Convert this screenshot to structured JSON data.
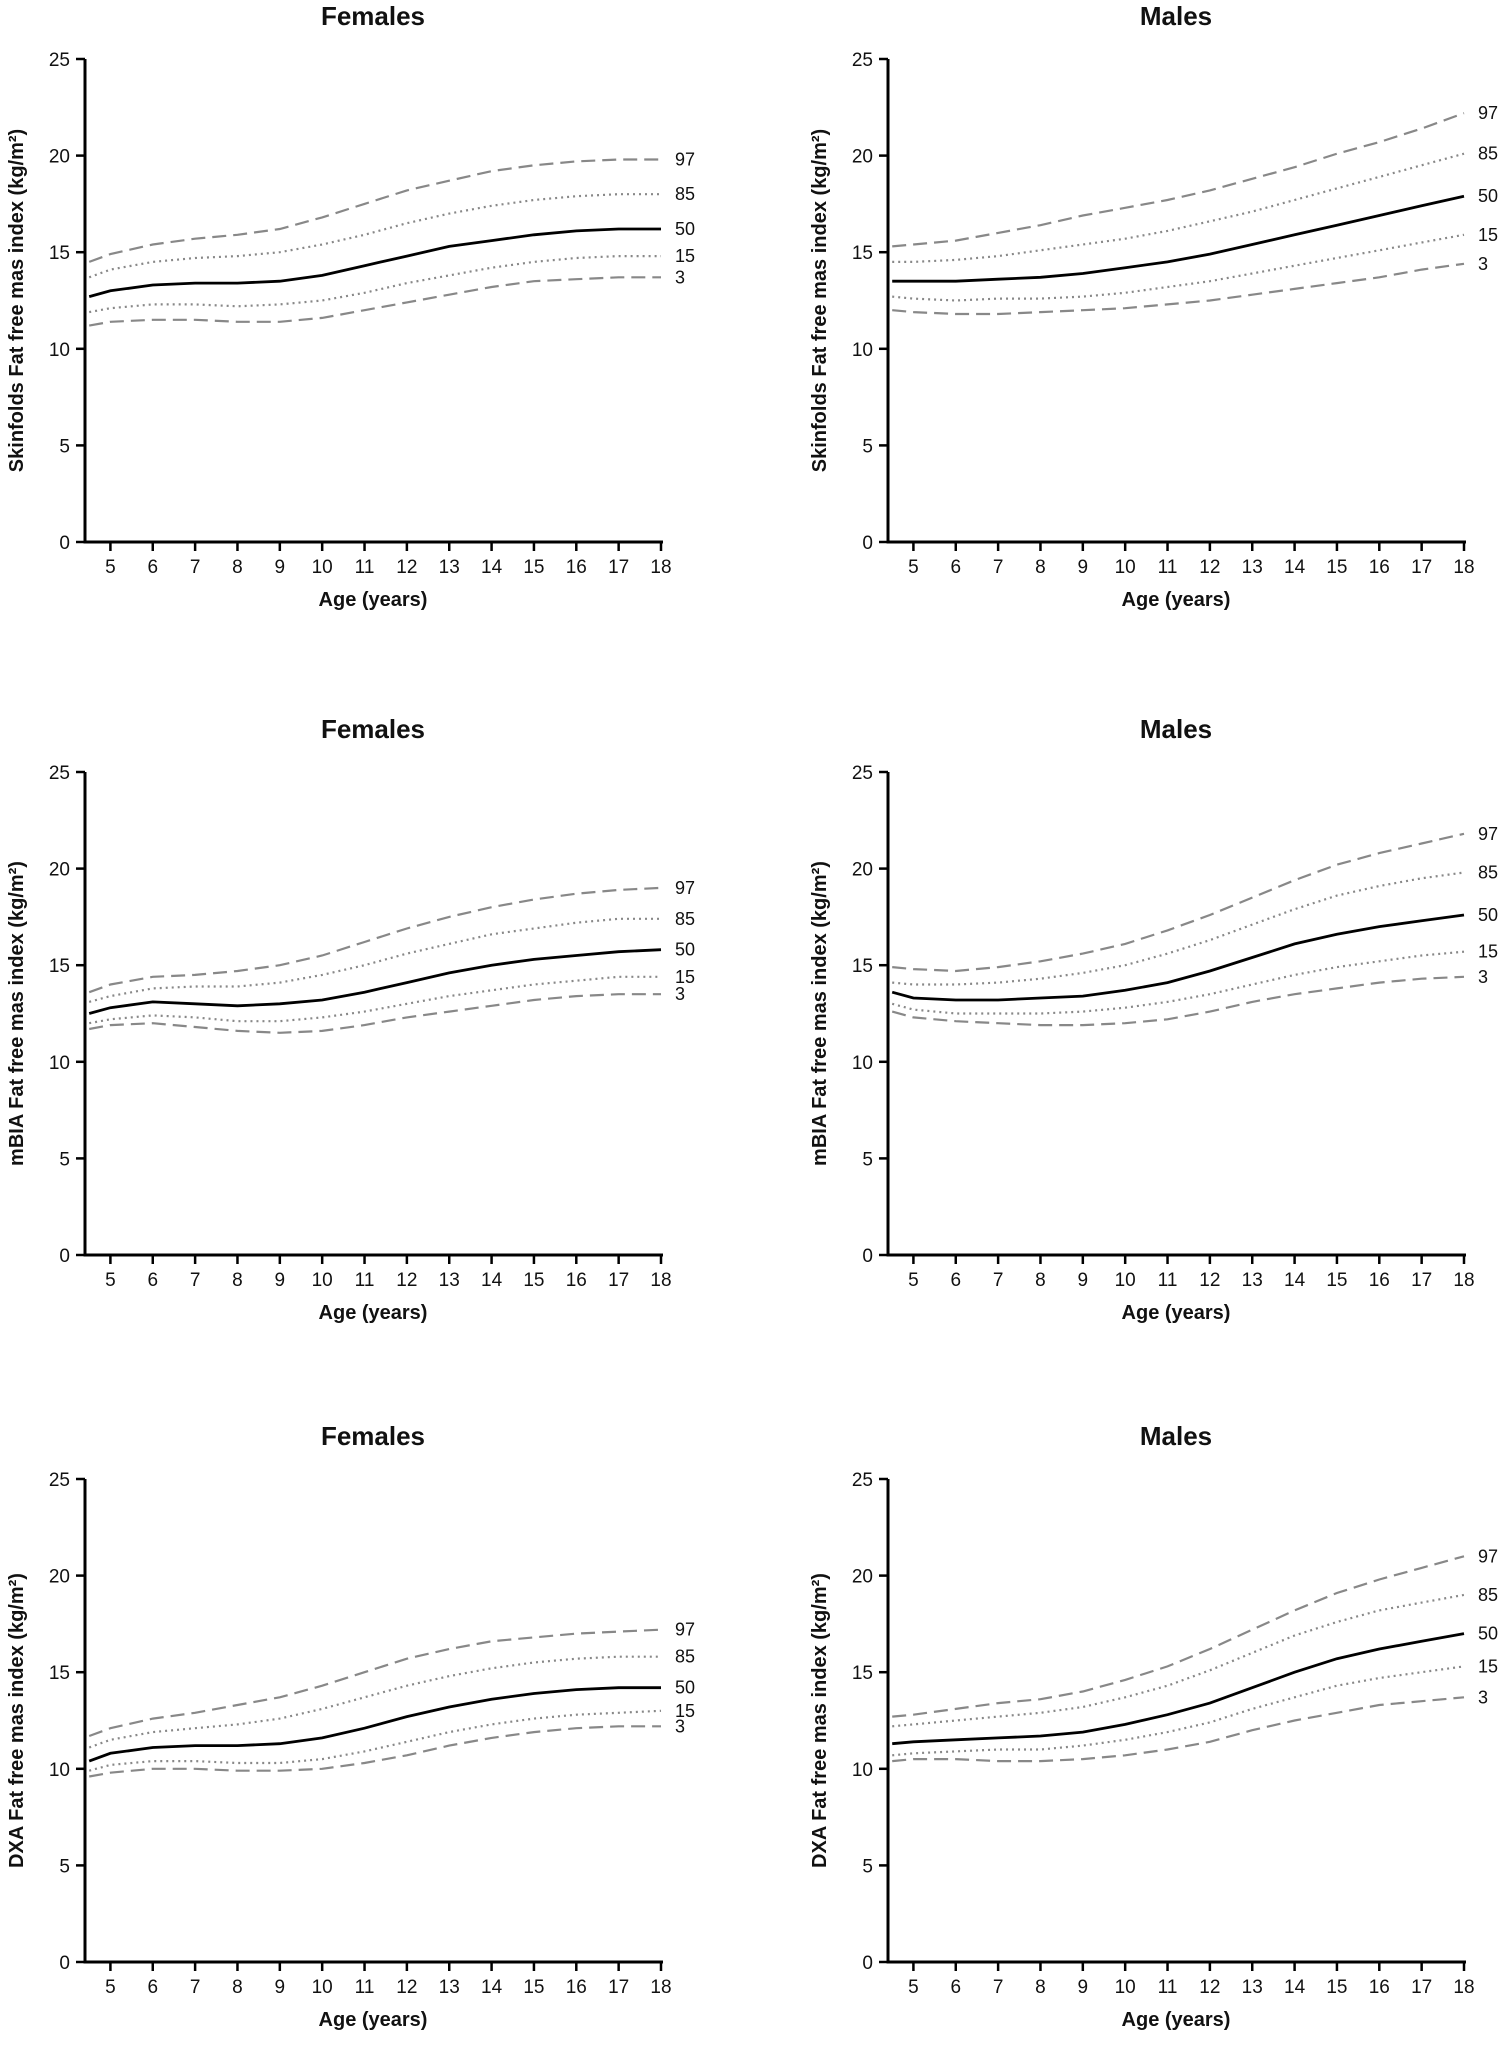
{
  "chart_data": [
    {
      "type": "line",
      "title": "Females",
      "x_label": "Age (years)",
      "y_label": "Skinfolds Fat free mas index  (kg/m²)",
      "x": [
        4.5,
        5,
        6,
        7,
        8,
        9,
        10,
        11,
        12,
        13,
        14,
        15,
        16,
        17,
        18
      ],
      "xlim": [
        4.4,
        18
      ],
      "xticks": [
        5,
        6,
        7,
        8,
        9,
        10,
        11,
        12,
        13,
        14,
        15,
        16,
        17,
        18
      ],
      "ylim": [
        0,
        25
      ],
      "yticks": [
        0,
        5,
        10,
        15,
        20,
        25
      ],
      "series": [
        {
          "name": "97",
          "color": "#888888",
          "style": "dashed",
          "values": [
            14.5,
            14.9,
            15.4,
            15.7,
            15.9,
            16.2,
            16.8,
            17.5,
            18.2,
            18.7,
            19.2,
            19.5,
            19.7,
            19.8,
            19.8
          ]
        },
        {
          "name": "85",
          "color": "#888888",
          "style": "dotted",
          "values": [
            13.7,
            14.1,
            14.5,
            14.7,
            14.8,
            15.0,
            15.4,
            15.9,
            16.5,
            17.0,
            17.4,
            17.7,
            17.9,
            18.0,
            18.0
          ]
        },
        {
          "name": "50",
          "color": "#000000",
          "style": "solid",
          "values": [
            12.7,
            13.0,
            13.3,
            13.4,
            13.4,
            13.5,
            13.8,
            14.3,
            14.8,
            15.3,
            15.6,
            15.9,
            16.1,
            16.2,
            16.2
          ]
        },
        {
          "name": "15",
          "color": "#888888",
          "style": "dotted",
          "values": [
            11.9,
            12.1,
            12.3,
            12.3,
            12.2,
            12.3,
            12.5,
            12.9,
            13.4,
            13.8,
            14.2,
            14.5,
            14.7,
            14.8,
            14.8
          ]
        },
        {
          "name": "3",
          "color": "#888888",
          "style": "dashed",
          "values": [
            11.2,
            11.4,
            11.5,
            11.5,
            11.4,
            11.4,
            11.6,
            12.0,
            12.4,
            12.8,
            13.2,
            13.5,
            13.6,
            13.7,
            13.7
          ]
        }
      ]
    },
    {
      "type": "line",
      "title": "Males",
      "x_label": "Age (years)",
      "y_label": "Skinfolds Fat free mas index  (kg/m²)",
      "x": [
        4.5,
        5,
        6,
        7,
        8,
        9,
        10,
        11,
        12,
        13,
        14,
        15,
        16,
        17,
        18
      ],
      "xlim": [
        4.4,
        18
      ],
      "xticks": [
        5,
        6,
        7,
        8,
        9,
        10,
        11,
        12,
        13,
        14,
        15,
        16,
        17,
        18
      ],
      "ylim": [
        0,
        25
      ],
      "yticks": [
        0,
        5,
        10,
        15,
        20,
        25
      ],
      "series": [
        {
          "name": "97",
          "color": "#888888",
          "style": "dashed",
          "values": [
            15.3,
            15.4,
            15.6,
            16.0,
            16.4,
            16.9,
            17.3,
            17.7,
            18.2,
            18.8,
            19.4,
            20.1,
            20.7,
            21.4,
            22.2
          ]
        },
        {
          "name": "85",
          "color": "#888888",
          "style": "dotted",
          "values": [
            14.5,
            14.5,
            14.6,
            14.8,
            15.1,
            15.4,
            15.7,
            16.1,
            16.6,
            17.1,
            17.7,
            18.3,
            18.9,
            19.5,
            20.1
          ]
        },
        {
          "name": "50",
          "color": "#000000",
          "style": "solid",
          "values": [
            13.5,
            13.5,
            13.5,
            13.6,
            13.7,
            13.9,
            14.2,
            14.5,
            14.9,
            15.4,
            15.9,
            16.4,
            16.9,
            17.4,
            17.9
          ]
        },
        {
          "name": "15",
          "color": "#888888",
          "style": "dotted",
          "values": [
            12.7,
            12.6,
            12.5,
            12.6,
            12.6,
            12.7,
            12.9,
            13.2,
            13.5,
            13.9,
            14.3,
            14.7,
            15.1,
            15.5,
            15.9
          ]
        },
        {
          "name": "3",
          "color": "#888888",
          "style": "dashed",
          "values": [
            12.0,
            11.9,
            11.8,
            11.8,
            11.9,
            12.0,
            12.1,
            12.3,
            12.5,
            12.8,
            13.1,
            13.4,
            13.7,
            14.1,
            14.4
          ]
        }
      ]
    },
    {
      "type": "line",
      "title": "Females",
      "x_label": "Age (years)",
      "y_label": "mBIA Fat free mas index  (kg/m²)",
      "x": [
        4.5,
        5,
        6,
        7,
        8,
        9,
        10,
        11,
        12,
        13,
        14,
        15,
        16,
        17,
        18
      ],
      "xlim": [
        4.4,
        18
      ],
      "xticks": [
        5,
        6,
        7,
        8,
        9,
        10,
        11,
        12,
        13,
        14,
        15,
        16,
        17,
        18
      ],
      "ylim": [
        0,
        25
      ],
      "yticks": [
        0,
        5,
        10,
        15,
        20,
        25
      ],
      "series": [
        {
          "name": "97",
          "color": "#888888",
          "style": "dashed",
          "values": [
            13.6,
            14.0,
            14.4,
            14.5,
            14.7,
            15.0,
            15.5,
            16.2,
            16.9,
            17.5,
            18.0,
            18.4,
            18.7,
            18.9,
            19.0
          ]
        },
        {
          "name": "85",
          "color": "#888888",
          "style": "dotted",
          "values": [
            13.1,
            13.4,
            13.8,
            13.9,
            13.9,
            14.1,
            14.5,
            15.0,
            15.6,
            16.1,
            16.6,
            16.9,
            17.2,
            17.4,
            17.4
          ]
        },
        {
          "name": "50",
          "color": "#000000",
          "style": "solid",
          "values": [
            12.5,
            12.8,
            13.1,
            13.0,
            12.9,
            13.0,
            13.2,
            13.6,
            14.1,
            14.6,
            15.0,
            15.3,
            15.5,
            15.7,
            15.8
          ]
        },
        {
          "name": "15",
          "color": "#888888",
          "style": "dotted",
          "values": [
            12.0,
            12.2,
            12.4,
            12.3,
            12.1,
            12.1,
            12.3,
            12.6,
            13.0,
            13.4,
            13.7,
            14.0,
            14.2,
            14.4,
            14.4
          ]
        },
        {
          "name": "3",
          "color": "#888888",
          "style": "dashed",
          "values": [
            11.7,
            11.9,
            12.0,
            11.8,
            11.6,
            11.5,
            11.6,
            11.9,
            12.3,
            12.6,
            12.9,
            13.2,
            13.4,
            13.5,
            13.5
          ]
        }
      ]
    },
    {
      "type": "line",
      "title": "Males",
      "x_label": "Age (years)",
      "y_label": "mBIA Fat free mas index  (kg/m²)",
      "x": [
        4.5,
        5,
        6,
        7,
        8,
        9,
        10,
        11,
        12,
        13,
        14,
        15,
        16,
        17,
        18
      ],
      "xlim": [
        4.4,
        18
      ],
      "xticks": [
        5,
        6,
        7,
        8,
        9,
        10,
        11,
        12,
        13,
        14,
        15,
        16,
        17,
        18
      ],
      "ylim": [
        0,
        25
      ],
      "yticks": [
        0,
        5,
        10,
        15,
        20,
        25
      ],
      "series": [
        {
          "name": "97",
          "color": "#888888",
          "style": "dashed",
          "values": [
            14.9,
            14.8,
            14.7,
            14.9,
            15.2,
            15.6,
            16.1,
            16.8,
            17.6,
            18.5,
            19.4,
            20.2,
            20.8,
            21.3,
            21.8
          ]
        },
        {
          "name": "85",
          "color": "#888888",
          "style": "dotted",
          "values": [
            14.1,
            14.0,
            14.0,
            14.1,
            14.3,
            14.6,
            15.0,
            15.6,
            16.3,
            17.1,
            17.9,
            18.6,
            19.1,
            19.5,
            19.8
          ]
        },
        {
          "name": "50",
          "color": "#000000",
          "style": "solid",
          "values": [
            13.6,
            13.3,
            13.2,
            13.2,
            13.3,
            13.4,
            13.7,
            14.1,
            14.7,
            15.4,
            16.1,
            16.6,
            17.0,
            17.3,
            17.6
          ]
        },
        {
          "name": "15",
          "color": "#888888",
          "style": "dotted",
          "values": [
            13.0,
            12.7,
            12.5,
            12.5,
            12.5,
            12.6,
            12.8,
            13.1,
            13.5,
            14.0,
            14.5,
            14.9,
            15.2,
            15.5,
            15.7
          ]
        },
        {
          "name": "3",
          "color": "#888888",
          "style": "dashed",
          "values": [
            12.6,
            12.3,
            12.1,
            12.0,
            11.9,
            11.9,
            12.0,
            12.2,
            12.6,
            13.1,
            13.5,
            13.8,
            14.1,
            14.3,
            14.4
          ]
        }
      ]
    },
    {
      "type": "line",
      "title": "Females",
      "x_label": "Age (years)",
      "y_label": "DXA Fat free mas index  (kg/m²)",
      "x": [
        4.5,
        5,
        6,
        7,
        8,
        9,
        10,
        11,
        12,
        13,
        14,
        15,
        16,
        17,
        18
      ],
      "xlim": [
        4.4,
        18
      ],
      "xticks": [
        5,
        6,
        7,
        8,
        9,
        10,
        11,
        12,
        13,
        14,
        15,
        16,
        17,
        18
      ],
      "ylim": [
        0,
        25
      ],
      "yticks": [
        0,
        5,
        10,
        15,
        20,
        25
      ],
      "series": [
        {
          "name": "97",
          "color": "#888888",
          "style": "dashed",
          "values": [
            11.7,
            12.1,
            12.6,
            12.9,
            13.3,
            13.7,
            14.3,
            15.0,
            15.7,
            16.2,
            16.6,
            16.8,
            17.0,
            17.1,
            17.2
          ]
        },
        {
          "name": "85",
          "color": "#888888",
          "style": "dotted",
          "values": [
            11.1,
            11.5,
            11.9,
            12.1,
            12.3,
            12.6,
            13.1,
            13.7,
            14.3,
            14.8,
            15.2,
            15.5,
            15.7,
            15.8,
            15.8
          ]
        },
        {
          "name": "50",
          "color": "#000000",
          "style": "solid",
          "values": [
            10.4,
            10.8,
            11.1,
            11.2,
            11.2,
            11.3,
            11.6,
            12.1,
            12.7,
            13.2,
            13.6,
            13.9,
            14.1,
            14.2,
            14.2
          ]
        },
        {
          "name": "15",
          "color": "#888888",
          "style": "dotted",
          "values": [
            9.9,
            10.2,
            10.4,
            10.4,
            10.3,
            10.3,
            10.5,
            10.9,
            11.4,
            11.9,
            12.3,
            12.6,
            12.8,
            12.9,
            13.0
          ]
        },
        {
          "name": "3",
          "color": "#888888",
          "style": "dashed",
          "values": [
            9.6,
            9.8,
            10.0,
            10.0,
            9.9,
            9.9,
            10.0,
            10.3,
            10.7,
            11.2,
            11.6,
            11.9,
            12.1,
            12.2,
            12.2
          ]
        }
      ]
    },
    {
      "type": "line",
      "title": "Males",
      "x_label": "Age (years)",
      "y_label": "DXA Fat free mas index  (kg/m²)",
      "x": [
        4.5,
        5,
        6,
        7,
        8,
        9,
        10,
        11,
        12,
        13,
        14,
        15,
        16,
        17,
        18
      ],
      "xlim": [
        4.4,
        18
      ],
      "xticks": [
        5,
        6,
        7,
        8,
        9,
        10,
        11,
        12,
        13,
        14,
        15,
        16,
        17,
        18
      ],
      "ylim": [
        0,
        25
      ],
      "yticks": [
        0,
        5,
        10,
        15,
        20,
        25
      ],
      "series": [
        {
          "name": "97",
          "color": "#888888",
          "style": "dashed",
          "values": [
            12.7,
            12.8,
            13.1,
            13.4,
            13.6,
            14.0,
            14.6,
            15.3,
            16.2,
            17.2,
            18.2,
            19.1,
            19.8,
            20.4,
            21.0
          ]
        },
        {
          "name": "85",
          "color": "#888888",
          "style": "dotted",
          "values": [
            12.2,
            12.3,
            12.5,
            12.7,
            12.9,
            13.2,
            13.7,
            14.3,
            15.1,
            16.0,
            16.9,
            17.6,
            18.2,
            18.6,
            19.0
          ]
        },
        {
          "name": "50",
          "color": "#000000",
          "style": "solid",
          "values": [
            11.3,
            11.4,
            11.5,
            11.6,
            11.7,
            11.9,
            12.3,
            12.8,
            13.4,
            14.2,
            15.0,
            15.7,
            16.2,
            16.6,
            17.0
          ]
        },
        {
          "name": "15",
          "color": "#888888",
          "style": "dotted",
          "values": [
            10.7,
            10.8,
            10.9,
            11.0,
            11.0,
            11.2,
            11.5,
            11.9,
            12.4,
            13.1,
            13.7,
            14.3,
            14.7,
            15.0,
            15.3
          ]
        },
        {
          "name": "3",
          "color": "#888888",
          "style": "dashed",
          "values": [
            10.4,
            10.5,
            10.5,
            10.4,
            10.4,
            10.5,
            10.7,
            11.0,
            11.4,
            12.0,
            12.5,
            12.9,
            13.3,
            13.5,
            13.7
          ]
        }
      ]
    }
  ]
}
